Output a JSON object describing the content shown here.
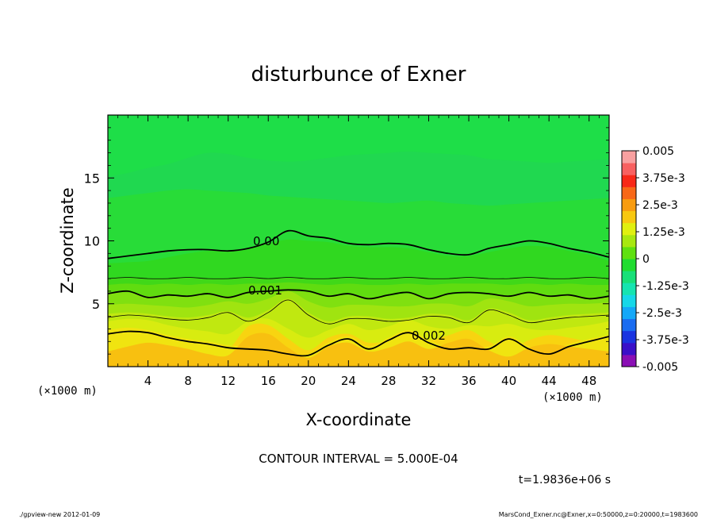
{
  "chart_data": {
    "type": "heatmap",
    "title": "disturbunce of Exner",
    "xlabel": "X-coordinate",
    "ylabel": "Z-coordinate",
    "x_unit_label": "(×1000 m)",
    "y_unit_label": "(×1000 m)",
    "xlim": [
      0,
      50
    ],
    "ylim": [
      0,
      20
    ],
    "x_ticks": [
      4,
      8,
      12,
      16,
      20,
      24,
      28,
      32,
      36,
      40,
      44,
      48
    ],
    "y_ticks": [
      5,
      10,
      15
    ],
    "grid": false,
    "contour_interval_text": "CONTOUR INTERVAL = 5.000E-04",
    "time_text": "t=1.9836e+06 s",
    "footer_left": "./gpview-new   2012-01-09",
    "footer_right": "MarsCond_Exner.nc@Exner,x=0:50000,z=0:20000,t=1983600",
    "colorbar": {
      "labels": [
        "0.005",
        "3.75e-3",
        "2.5e-3",
        "1.25e-3",
        "0",
        "-1.25e-3",
        "-2.5e-3",
        "-3.75e-3",
        "-0.005"
      ],
      "range": [
        -0.005,
        0.005
      ],
      "colors": [
        "#8a0fb4",
        "#3a10c8",
        "#1a34e0",
        "#1a6cf0",
        "#14a8f8",
        "#16d8e8",
        "#16e4b0",
        "#18e078",
        "#20dc30",
        "#60e010",
        "#a8e810",
        "#e0f010",
        "#f8c810",
        "#f89c10",
        "#f86818",
        "#f82818",
        "#f86060",
        "#f8a0a0"
      ]
    },
    "bands": [
      {
        "level": 0.0025,
        "color": "#f8c010",
        "z": [
          1.2,
          1.6,
          1.9,
          1.7,
          1.4,
          1.0,
          0.9,
          2.4,
          2.6,
          1.5,
          0.7,
          1.6,
          1.9,
          1.2,
          1.5,
          2.0,
          1.4,
          1.9,
          2.2,
          1.3,
          0.8,
          1.5,
          1.8,
          1.6,
          1.4,
          1.2
        ]
      },
      {
        "level": 0.00225,
        "color": "#f8d410",
        "z": [
          2.0,
          2.4,
          2.6,
          2.3,
          2.0,
          1.6,
          1.4,
          3.2,
          3.3,
          2.2,
          1.3,
          2.3,
          2.6,
          1.9,
          2.1,
          2.7,
          2.1,
          2.5,
          2.9,
          2.0,
          1.4,
          2.1,
          2.5,
          2.3,
          2.0,
          2.0
        ]
      },
      {
        "level": 0.002,
        "color": "#f0e410",
        "z": [
          2.9,
          3.1,
          2.9,
          2.5,
          2.2,
          2.0,
          1.7,
          1.6,
          1.5,
          1.1,
          1.0,
          1.9,
          2.4,
          1.6,
          2.3,
          2.9,
          2.1,
          1.6,
          1.7,
          1.6,
          2.4,
          1.6,
          1.2,
          1.8,
          2.2,
          2.5
        ]
      },
      {
        "level": 0.00175,
        "color": "#d8ec10",
        "z": [
          3.6,
          3.8,
          3.7,
          3.3,
          3.0,
          2.8,
          2.6,
          3.6,
          3.8,
          3.0,
          2.3,
          2.9,
          3.4,
          2.9,
          3.2,
          3.7,
          3.2,
          3.0,
          3.3,
          3.2,
          3.4,
          3.0,
          2.9,
          3.1,
          3.3,
          3.6
        ]
      },
      {
        "level": 0.0015,
        "color": "#c0e810",
        "z": [
          4.2,
          4.3,
          4.2,
          4.0,
          3.9,
          4.1,
          4.4,
          3.9,
          4.5,
          5.4,
          4.3,
          3.6,
          4.0,
          4.0,
          3.8,
          3.9,
          4.2,
          4.1,
          3.7,
          4.6,
          4.3,
          3.7,
          3.9,
          4.1,
          4.2,
          4.3
        ]
      },
      {
        "level": 0.00125,
        "color": "#a0e410",
        "z": [
          4.9,
          5.0,
          4.9,
          4.8,
          4.7,
          4.9,
          5.2,
          5.0,
          5.4,
          6.0,
          5.2,
          4.7,
          4.9,
          4.9,
          4.8,
          4.8,
          5.0,
          5.0,
          4.8,
          5.4,
          5.2,
          4.8,
          4.9,
          5.0,
          5.0,
          5.1
        ]
      },
      {
        "level": 0.001,
        "color": "#80e010",
        "z": [
          5.8,
          5.9,
          5.6,
          5.7,
          5.6,
          5.7,
          5.6,
          5.8,
          5.9,
          6.0,
          5.9,
          5.6,
          5.7,
          5.5,
          5.6,
          5.8,
          5.5,
          5.7,
          5.8,
          5.7,
          5.6,
          5.8,
          5.6,
          5.7,
          5.5,
          5.6
        ]
      },
      {
        "level": 0.00075,
        "color": "#60dc10",
        "z": [
          6.5,
          6.6,
          6.5,
          6.6,
          6.5,
          6.6,
          6.5,
          6.6,
          6.6,
          6.7,
          6.6,
          6.5,
          6.6,
          6.5,
          6.5,
          6.6,
          6.5,
          6.6,
          6.6,
          6.6,
          6.5,
          6.6,
          6.5,
          6.6,
          6.5,
          6.5
        ]
      },
      {
        "level": 0.0005,
        "color": "#40d818",
        "z": [
          7.0,
          7.1,
          7.0,
          7.0,
          7.1,
          7.0,
          7.0,
          7.1,
          7.0,
          7.1,
          7.0,
          7.0,
          7.1,
          7.0,
          7.0,
          7.1,
          7.0,
          7.0,
          7.1,
          7.0,
          7.0,
          7.1,
          7.0,
          7.0,
          7.1,
          7.0
        ]
      },
      {
        "level": 0.00025,
        "color": "#30d820",
        "z": [
          8.2,
          8.3,
          8.4,
          8.7,
          9.0,
          9.2,
          9.2,
          9.4,
          9.8,
          10.1,
          10.0,
          9.9,
          9.6,
          9.5,
          9.5,
          9.4,
          9.1,
          8.8,
          8.8,
          9.1,
          9.4,
          9.6,
          9.5,
          9.2,
          8.9,
          8.4
        ]
      },
      {
        "level": 0.0,
        "color": "#28dc38",
        "z": [
          13.4,
          13.6,
          13.8,
          14.0,
          14.1,
          14.0,
          13.9,
          13.8,
          13.6,
          13.5,
          13.4,
          13.3,
          13.2,
          13.1,
          13.0,
          13.1,
          13.2,
          13.0,
          12.9,
          12.8,
          12.9,
          13.0,
          13.1,
          13.2,
          13.3,
          13.4
        ]
      },
      {
        "level": -0.00025,
        "color": "#20d850",
        "z": [
          15.1,
          15.4,
          15.8,
          16.1,
          16.6,
          17.0,
          16.9,
          16.6,
          16.4,
          16.3,
          16.4,
          16.6,
          16.8,
          16.9,
          17.0,
          17.1,
          17.0,
          16.9,
          16.8,
          16.5,
          16.4,
          16.3,
          16.2,
          16.3,
          16.4,
          16.5
        ]
      }
    ],
    "contours": [
      {
        "level": 0.002,
        "label": "0.002",
        "weight": "thick",
        "label_x": 32.0,
        "label_y": 2.4,
        "z": [
          2.6,
          2.8,
          2.7,
          2.3,
          2.0,
          1.8,
          1.5,
          1.4,
          1.3,
          1.0,
          0.9,
          1.7,
          2.2,
          1.4,
          2.1,
          2.7,
          1.9,
          1.4,
          1.5,
          1.4,
          2.2,
          1.4,
          1.0,
          1.6,
          2.0,
          2.4
        ]
      },
      {
        "level": 0.0015,
        "label": "",
        "weight": "thin",
        "label_x": 0,
        "label_y": 0,
        "z": [
          3.9,
          4.1,
          4.0,
          3.8,
          3.7,
          3.9,
          4.3,
          3.6,
          4.3,
          5.3,
          4.1,
          3.4,
          3.8,
          3.8,
          3.6,
          3.7,
          4.0,
          3.9,
          3.5,
          4.5,
          4.1,
          3.5,
          3.7,
          3.9,
          4.0,
          4.1
        ]
      },
      {
        "level": 0.001,
        "label": "0.001",
        "weight": "thick",
        "label_x": 15.7,
        "label_y": 6.0,
        "z": [
          5.8,
          6.0,
          5.5,
          5.7,
          5.6,
          5.8,
          5.5,
          5.9,
          6.0,
          6.1,
          6.0,
          5.6,
          5.8,
          5.4,
          5.7,
          5.9,
          5.4,
          5.8,
          5.9,
          5.8,
          5.6,
          5.9,
          5.6,
          5.7,
          5.4,
          5.6
        ]
      },
      {
        "level": 0.0005,
        "label": "",
        "weight": "thin",
        "label_x": 0,
        "label_y": 0,
        "z": [
          7.0,
          7.1,
          7.0,
          7.0,
          7.1,
          7.0,
          7.0,
          7.1,
          7.0,
          7.1,
          7.0,
          7.0,
          7.1,
          7.0,
          7.0,
          7.1,
          7.0,
          7.0,
          7.1,
          7.0,
          7.0,
          7.1,
          7.0,
          7.0,
          7.1,
          7.0
        ]
      },
      {
        "level": 0.0,
        "label": "0.00",
        "weight": "thick",
        "label_x": 15.8,
        "label_y": 9.9,
        "z": [
          8.6,
          8.8,
          9.0,
          9.2,
          9.3,
          9.3,
          9.2,
          9.4,
          9.9,
          10.8,
          10.4,
          10.2,
          9.8,
          9.7,
          9.8,
          9.7,
          9.3,
          9.0,
          8.9,
          9.4,
          9.7,
          10.0,
          9.8,
          9.4,
          9.1,
          8.7
        ]
      }
    ]
  }
}
